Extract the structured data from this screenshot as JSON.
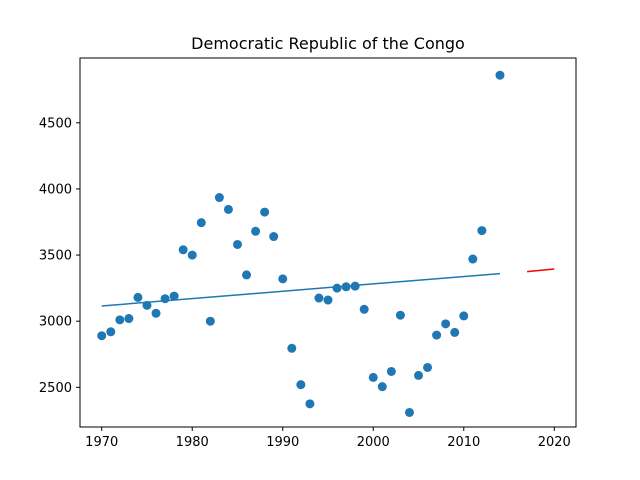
{
  "chart_data": {
    "type": "scatter",
    "title": "Democratic Republic of the Congo",
    "xlabel": "",
    "ylabel": "",
    "xlim": [
      1967.6,
      2022.4
    ],
    "ylim": [
      2200,
      4990
    ],
    "xticks": [
      1970,
      1980,
      1990,
      2000,
      2010,
      2020
    ],
    "yticks": [
      2500,
      3000,
      3500,
      4000,
      4500
    ],
    "grid": false,
    "legend": "none",
    "colors": {
      "points": "#1f77b4",
      "fit": "#1f77b4",
      "forecast": "#ff0000"
    },
    "points": [
      [
        1970,
        2890
      ],
      [
        1971,
        2920
      ],
      [
        1972,
        3010
      ],
      [
        1973,
        3020
      ],
      [
        1974,
        3180
      ],
      [
        1975,
        3120
      ],
      [
        1976,
        3060
      ],
      [
        1977,
        3170
      ],
      [
        1978,
        3190
      ],
      [
        1979,
        3540
      ],
      [
        1980,
        3500
      ],
      [
        1981,
        3745
      ],
      [
        1982,
        3000
      ],
      [
        1983,
        3935
      ],
      [
        1984,
        3845
      ],
      [
        1985,
        3580
      ],
      [
        1986,
        3350
      ],
      [
        1987,
        3680
      ],
      [
        1988,
        3825
      ],
      [
        1989,
        3640
      ],
      [
        1990,
        3320
      ],
      [
        1991,
        2795
      ],
      [
        1992,
        2520
      ],
      [
        1993,
        2375
      ],
      [
        1994,
        3175
      ],
      [
        1995,
        3160
      ],
      [
        1996,
        3250
      ],
      [
        1997,
        3260
      ],
      [
        1998,
        3265
      ],
      [
        1999,
        3090
      ],
      [
        2000,
        2575
      ],
      [
        2001,
        2505
      ],
      [
        2002,
        2620
      ],
      [
        2003,
        3045
      ],
      [
        2004,
        2310
      ],
      [
        2005,
        2590
      ],
      [
        2006,
        2650
      ],
      [
        2007,
        2895
      ],
      [
        2008,
        2980
      ],
      [
        2009,
        2915
      ],
      [
        2010,
        3040
      ],
      [
        2011,
        3470
      ],
      [
        2012,
        3685
      ],
      [
        2014,
        4860
      ]
    ],
    "fit_line": [
      [
        1970,
        3115
      ],
      [
        2014,
        3360
      ]
    ],
    "forecast_line": [
      [
        2017,
        3375
      ],
      [
        2020,
        3395
      ]
    ]
  }
}
